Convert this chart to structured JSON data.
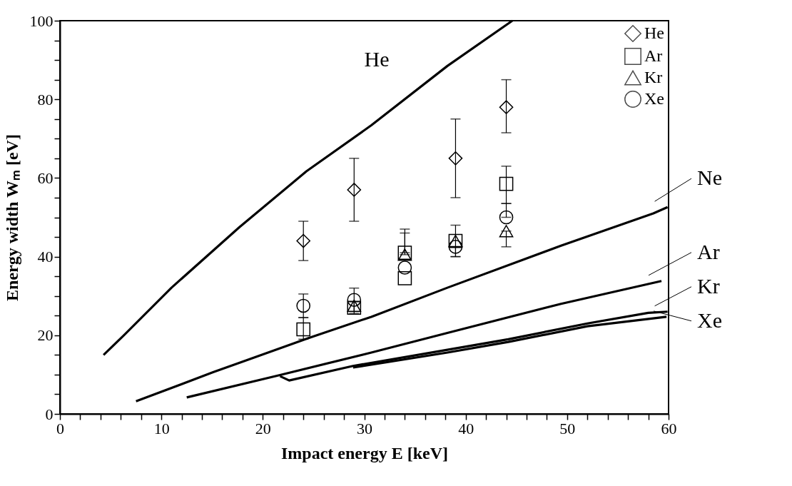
{
  "chart_data": {
    "type": "line",
    "xlabel": "Impact energy E [keV]",
    "ylabel": "Energy width Wₘ [eV]",
    "xlim": [
      0,
      60
    ],
    "ylim": [
      0,
      100
    ],
    "xticks": [
      0,
      {
        "value": 2,
        "label": null
      },
      {
        "value": 4,
        "label": null
      },
      {
        "value": 6,
        "label": null
      },
      {
        "value": 8,
        "label": null
      },
      10,
      {
        "value": 12,
        "label": null
      },
      {
        "value": 14,
        "label": null
      },
      {
        "value": 16,
        "label": null
      },
      {
        "value": 18,
        "label": null
      },
      20,
      {
        "value": 22,
        "label": null
      },
      {
        "value": 24,
        "label": null
      },
      {
        "value": 26,
        "label": null
      },
      {
        "value": 28,
        "label": null
      },
      30,
      {
        "value": 32,
        "label": null
      },
      {
        "value": 34,
        "label": null
      },
      {
        "value": 36,
        "label": null
      },
      {
        "value": 38,
        "label": null
      },
      40,
      {
        "value": 42,
        "label": null
      },
      {
        "value": 44,
        "label": null
      },
      {
        "value": 46,
        "label": null
      },
      {
        "value": 48,
        "label": null
      },
      50,
      {
        "value": 52,
        "label": null
      },
      {
        "value": 54,
        "label": null
      },
      {
        "value": 56,
        "label": null
      },
      {
        "value": 58,
        "label": null
      },
      60
    ],
    "yticks": [
      0,
      {
        "value": 5,
        "label": null
      },
      {
        "value": 10,
        "label": null
      },
      {
        "value": 15,
        "label": null
      },
      20,
      {
        "value": 25,
        "label": null
      },
      {
        "value": 30,
        "label": null
      },
      {
        "value": 35,
        "label": null
      },
      40,
      {
        "value": 45,
        "label": null
      },
      {
        "value": 50,
        "label": null
      },
      {
        "value": 55,
        "label": null
      },
      60,
      {
        "value": 65,
        "label": null
      },
      {
        "value": 70,
        "label": null
      },
      {
        "value": 75,
        "label": null
      },
      80,
      {
        "value": 85,
        "label": null
      },
      {
        "value": 90,
        "label": null
      },
      {
        "value": 95,
        "label": null
      },
      100
    ],
    "grid": false,
    "legend": "top right",
    "series": [
      {
        "name": "He",
        "color": "#000000",
        "x": [
          4.3,
          6.3,
          11.0,
          17.7,
          24.3,
          30.7,
          38.2,
          44.6
        ],
        "values": [
          15.0,
          20.0,
          32.1,
          47.5,
          61.7,
          73.4,
          88.5,
          100
        ]
      },
      {
        "name": "Ne",
        "color": "#000000",
        "x": [
          7.5,
          15.1,
          24.5,
          30.7,
          38.2,
          49.4,
          58.5,
          59.9
        ],
        "values": [
          3.2,
          10.6,
          19.3,
          24.7,
          32.1,
          42.8,
          51,
          52.6
        ]
      },
      {
        "name": "Ar",
        "color": "#000000",
        "x": [
          12.5,
          21.7,
          30.7,
          38.2,
          49.4,
          59.3
        ],
        "values": [
          4.2,
          9.9,
          15.6,
          20.6,
          28.0,
          33.8
        ]
      },
      {
        "name": "Kr",
        "color": "#000000",
        "x": [
          21.7,
          22.6,
          28.9,
          38.2,
          44.2,
          52.0,
          58.0,
          59.9
        ],
        "values": [
          9.6,
          8.5,
          12.2,
          16.3,
          19.0,
          23.0,
          25.7,
          26.0
        ]
      },
      {
        "name": "Xe",
        "color": "#000000",
        "x": [
          28.9,
          38.2,
          44.2,
          52.0,
          59.8
        ],
        "values": [
          11.8,
          15.6,
          18.3,
          22.3,
          24.7
        ]
      },
      {
        "type": "scatter",
        "name": "He",
        "marker": "diamond",
        "color": "#000000",
        "x": [
          24,
          29,
          39,
          44
        ],
        "values": [
          44,
          57,
          65,
          78
        ],
        "errors": [
          [
            39,
            49
          ],
          [
            49,
            65
          ],
          10,
          [
            71.5,
            85
          ]
        ]
      },
      {
        "type": "scatter",
        "name": "Ar",
        "marker": "square",
        "color": "#000000",
        "x": [
          24,
          29,
          34,
          34,
          39,
          44
        ],
        "values": [
          21.5,
          27,
          41,
          34.5,
          44,
          58.5
        ],
        "errors": [
          [
            19,
            24.5
          ],
          [
            25.5,
            28.5
          ],
          [
            41,
            46
          ],
          null,
          [
            40,
            48
          ],
          [
            53.5,
            63
          ]
        ]
      },
      {
        "type": "scatter",
        "name": "Kr",
        "marker": "triangle",
        "color": "#000000",
        "x": [
          29,
          34,
          39,
          44
        ],
        "values": [
          27.5,
          40.5,
          44,
          46.5
        ],
        "errors": [
          null,
          [
            40.5,
            47
          ],
          null,
          [
            42.5,
            46.5
          ]
        ]
      },
      {
        "type": "scatter",
        "name": "Xe",
        "marker": "circle",
        "color": "#000000",
        "x": [
          24,
          29,
          34,
          39,
          44
        ],
        "values": [
          27.5,
          29,
          37.2,
          42.5,
          50
        ],
        "errors": [
          [
            24.5,
            30.5
          ],
          [
            26,
            32
          ],
          null,
          [
            40,
            42.5
          ],
          [
            50,
            53.5
          ]
        ]
      }
    ]
  }
}
